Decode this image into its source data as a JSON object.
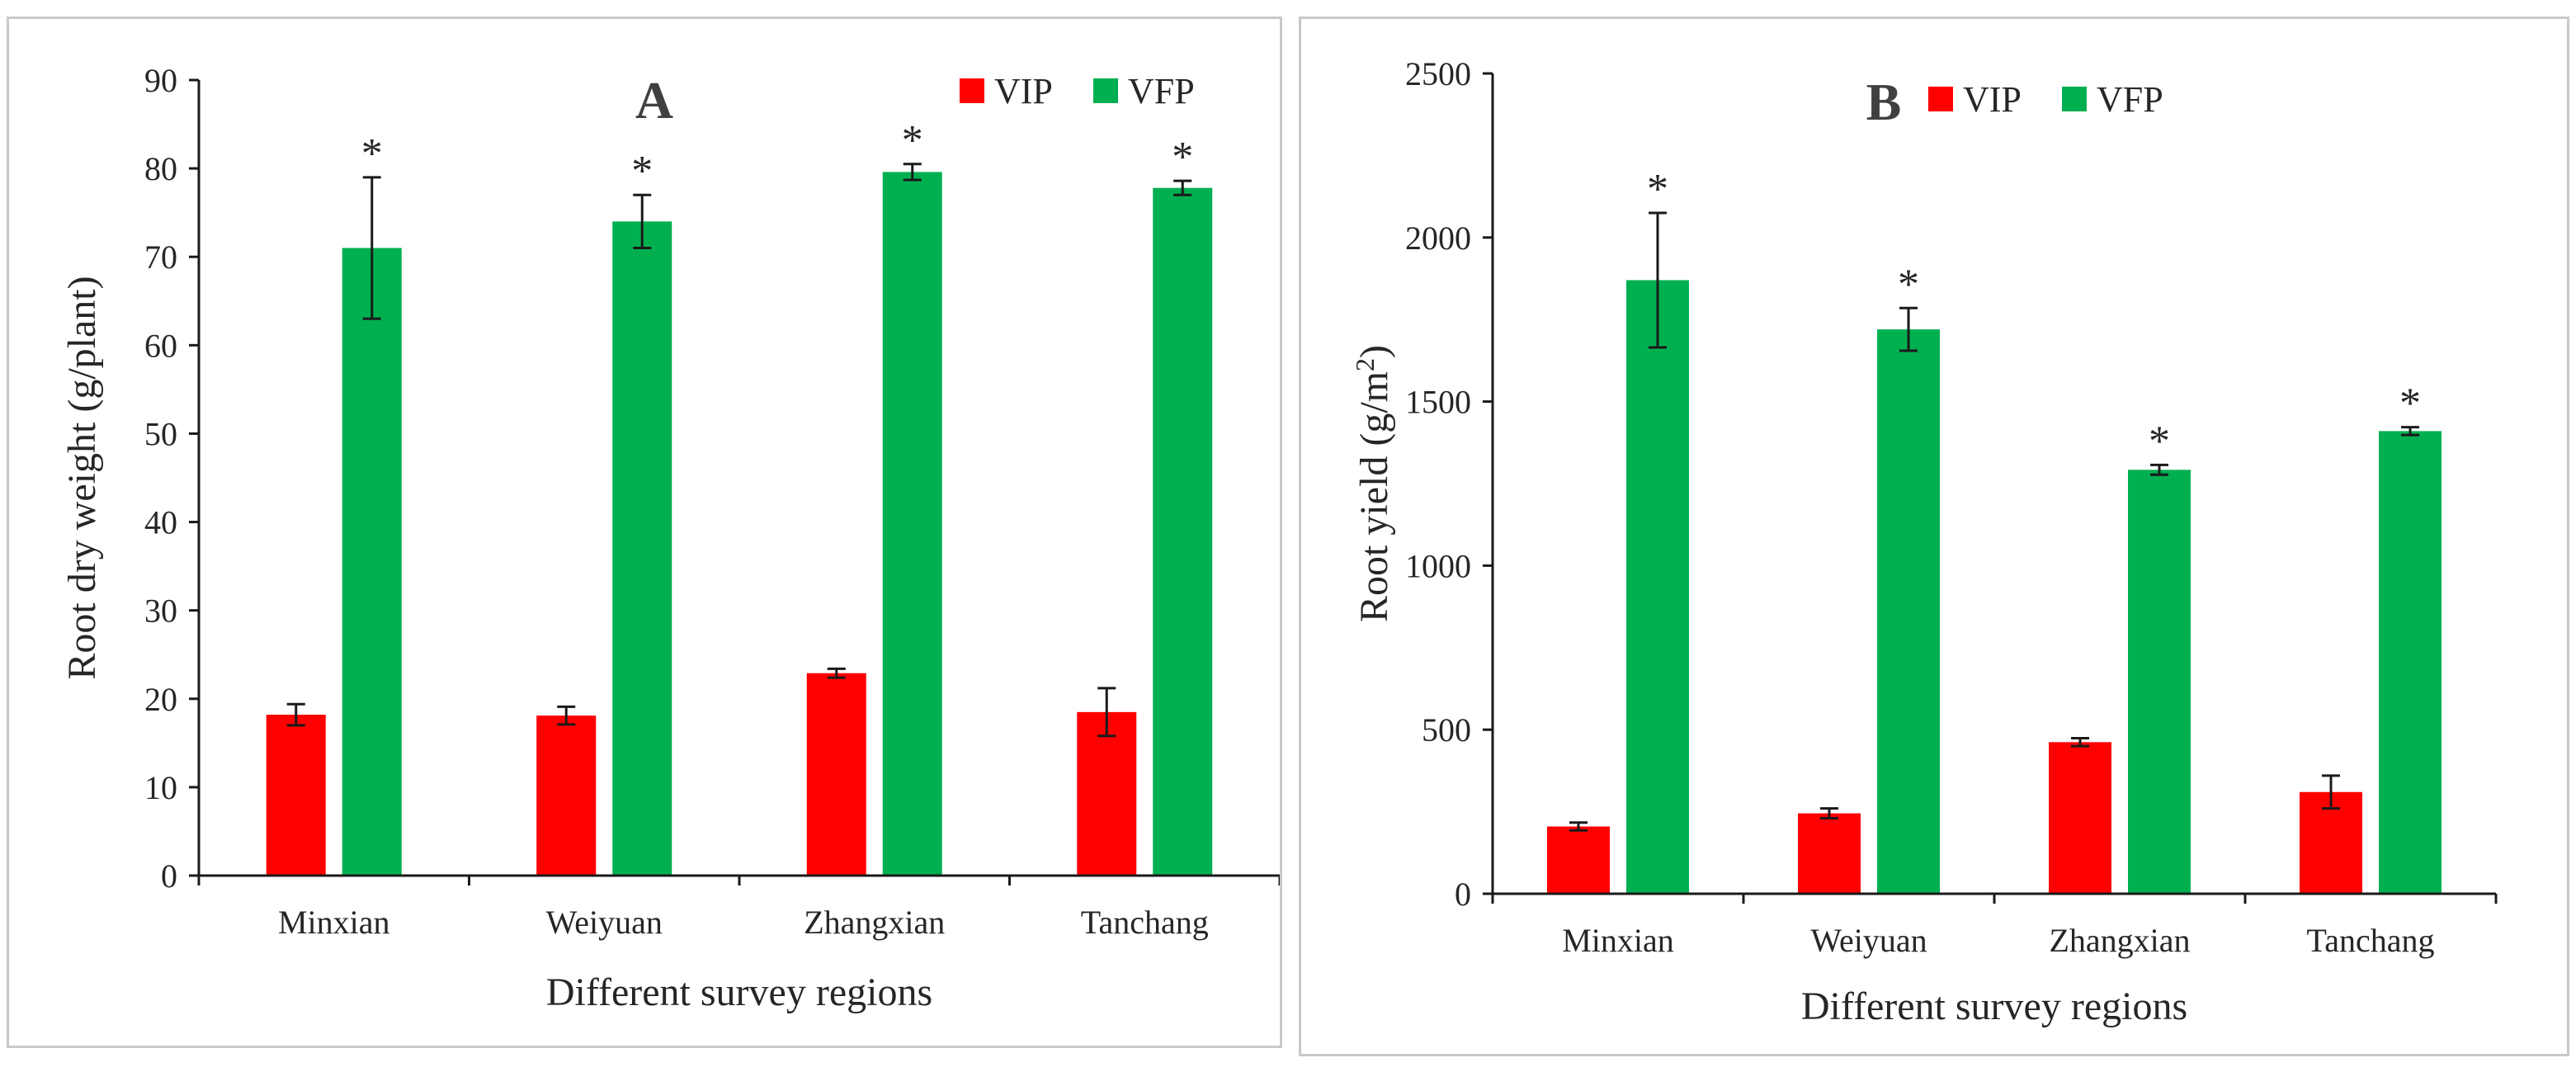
{
  "colors": {
    "VIP": "#ff0000",
    "VFP": "#00b050"
  },
  "chart_data": [
    {
      "type": "bar",
      "panel_label": "A",
      "categories": [
        "Minxian",
        "Weiyuan",
        "Zhangxian",
        "Tanchang"
      ],
      "series": [
        {
          "name": "VIP",
          "values": [
            18.2,
            18.1,
            22.9,
            18.5
          ],
          "errors": [
            1.2,
            1.0,
            0.5,
            2.7
          ]
        },
        {
          "name": "VFP",
          "values": [
            71.0,
            74.0,
            79.6,
            77.8
          ],
          "errors": [
            8.0,
            3.0,
            0.9,
            0.8
          ]
        }
      ],
      "significance": [
        "*",
        "*",
        "*",
        "*"
      ],
      "xlabel": "Different survey regions",
      "ylabel": "Root dry weight (g/plant)",
      "ylim": [
        0,
        90
      ],
      "yticks": [
        0,
        10,
        20,
        30,
        40,
        50,
        60,
        70,
        80,
        90
      ],
      "legend": [
        "VIP",
        "VFP"
      ],
      "legend_position": "top-right"
    },
    {
      "type": "bar",
      "panel_label": "B",
      "categories": [
        "Minxian",
        "Weiyuan",
        "Zhangxian",
        "Tanchang"
      ],
      "series": [
        {
          "name": "VIP",
          "values": [
            205,
            245,
            462,
            310
          ],
          "errors": [
            12,
            15,
            12,
            50
          ]
        },
        {
          "name": "VFP",
          "values": [
            1870,
            1720,
            1292,
            1410
          ],
          "errors": [
            205,
            65,
            15,
            12
          ]
        }
      ],
      "significance": [
        "*",
        "*",
        "*",
        "*"
      ],
      "xlabel": "Different survey regions",
      "ylabel_main": "Root yield (g/m",
      "ylabel_sup": "2",
      "ylabel_end": ")",
      "ylim": [
        0,
        2500
      ],
      "yticks": [
        0,
        500,
        1000,
        1500,
        2000,
        2500
      ],
      "legend": [
        "VIP",
        "VFP"
      ],
      "legend_position": "top-right"
    }
  ]
}
